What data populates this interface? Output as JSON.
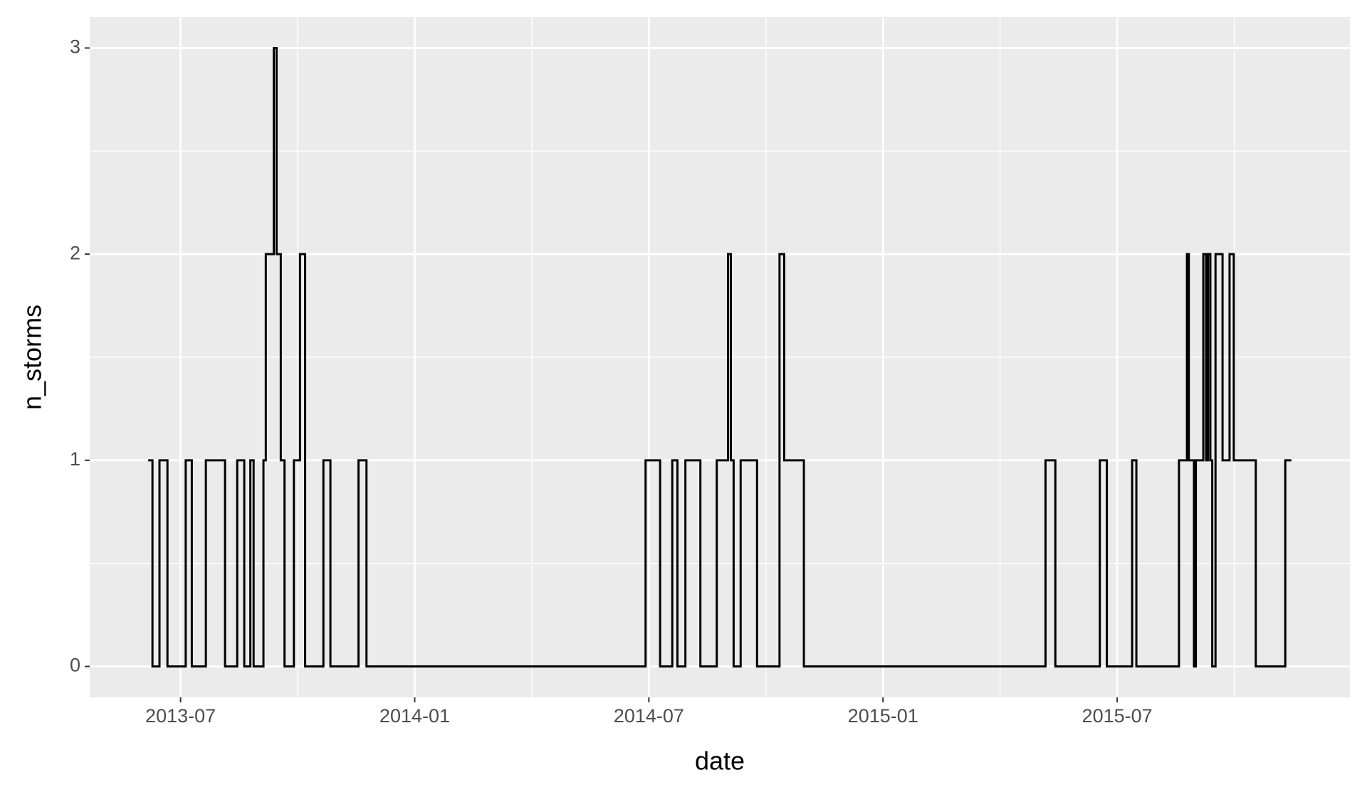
{
  "chart_data": {
    "type": "step",
    "x_label": "date",
    "y_label": "n_storms",
    "x": [
      2013.431,
      2013.44,
      2013.455,
      2013.472,
      2013.511,
      2013.524,
      2013.554,
      2013.595,
      2013.621,
      2013.636,
      2013.649,
      2013.656,
      2013.677,
      2013.682,
      2013.699,
      2013.705,
      2013.714,
      2013.722,
      2013.742,
      2013.755,
      2013.766,
      2013.805,
      2013.82,
      2013.88,
      2013.897,
      2014.493,
      2014.524,
      2014.55,
      2014.561,
      2014.578,
      2014.61,
      2014.645,
      2014.669,
      2014.675,
      2014.681,
      2014.696,
      2014.731,
      2014.779,
      2014.789,
      2014.831,
      2015.347,
      2015.368,
      2015.463,
      2015.478,
      2015.532,
      2015.541,
      2015.632,
      2015.649,
      2015.653,
      2015.664,
      2015.668,
      2015.684,
      2015.69,
      2015.694,
      2015.699,
      2015.703,
      2015.71,
      2015.725,
      2015.74,
      2015.749,
      2015.796,
      2015.859,
      2015.872
    ],
    "series": [
      {
        "name": "n_storms",
        "color": "#000000",
        "values": [
          1,
          0,
          1,
          0,
          1,
          0,
          1,
          0,
          1,
          0,
          1,
          0,
          1,
          2,
          3,
          2,
          1,
          0,
          1,
          2,
          0,
          1,
          0,
          1,
          0,
          1,
          0,
          1,
          0,
          1,
          0,
          1,
          2,
          1,
          0,
          1,
          0,
          2,
          1,
          0,
          1,
          0,
          1,
          0,
          1,
          0,
          1,
          2,
          1,
          0,
          1,
          2,
          1,
          2,
          1,
          0,
          2,
          1,
          2,
          1,
          0,
          1,
          1
        ]
      }
    ],
    "xlim": [
      2013.306,
      2015.997
    ],
    "xticks": [
      {
        "value": 2013.5,
        "label": "2013-07"
      },
      {
        "value": 2014.0,
        "label": "2014-01"
      },
      {
        "value": 2014.5,
        "label": "2014-07"
      },
      {
        "value": 2015.0,
        "label": "2015-01"
      },
      {
        "value": 2015.5,
        "label": "2015-07"
      }
    ],
    "ylim": [
      -0.15,
      3.15
    ],
    "yticks": [
      0,
      1,
      2,
      3
    ],
    "grid": true
  }
}
